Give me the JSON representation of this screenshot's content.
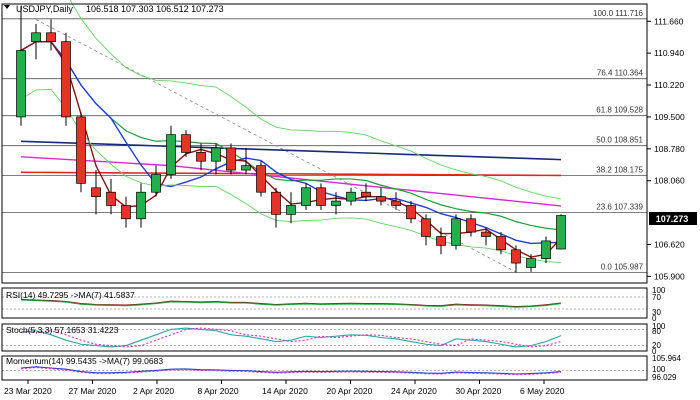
{
  "chart_data": {
    "type": "candlestick",
    "instrument": "USDJPY,Daily",
    "ohlc_header": "106.518 107.303 106.512 107.273",
    "x_tick_labels": [
      "23 Mar 2020",
      "27 Mar 2020",
      "2 Apr 2020",
      "8 Apr 2020",
      "14 Apr 2020",
      "20 Apr 2020",
      "24 Apr 2020",
      "30 Apr 2020",
      "6 May 2020"
    ],
    "y_tick_labels": [
      111.66,
      110.94,
      110.22,
      109.5,
      108.78,
      108.06,
      106.62,
      105.9
    ],
    "ylim": [
      105.75,
      112.05
    ],
    "last_price": "107.273",
    "fib_levels": [
      {
        "label": "100.0 111.716",
        "value": 111.716
      },
      {
        "label": "76.4 110.364",
        "value": 110.364
      },
      {
        "label": "61.8 109.528",
        "value": 109.528
      },
      {
        "label": "50.0 108.851",
        "value": 108.851
      },
      {
        "label": "38.2 108.175",
        "value": 108.175
      },
      {
        "label": "23.6 107.339",
        "value": 107.339
      },
      {
        "label": "0.0 105.987",
        "value": 105.987
      }
    ],
    "candles": [
      {
        "o": 109.5,
        "h": 112.0,
        "l": 109.3,
        "c": 111.0
      },
      {
        "o": 111.2,
        "h": 111.6,
        "l": 110.8,
        "c": 111.4
      },
      {
        "o": 111.4,
        "h": 111.7,
        "l": 111.0,
        "c": 111.2
      },
      {
        "o": 111.2,
        "h": 111.4,
        "l": 109.3,
        "c": 109.5
      },
      {
        "o": 109.5,
        "h": 109.6,
        "l": 107.8,
        "c": 108.0
      },
      {
        "o": 107.9,
        "h": 108.3,
        "l": 107.3,
        "c": 107.7
      },
      {
        "o": 107.8,
        "h": 108.1,
        "l": 107.3,
        "c": 107.5
      },
      {
        "o": 107.5,
        "h": 107.7,
        "l": 107.0,
        "c": 107.2
      },
      {
        "o": 107.2,
        "h": 108.0,
        "l": 107.0,
        "c": 107.8
      },
      {
        "o": 107.8,
        "h": 108.4,
        "l": 107.7,
        "c": 108.2
      },
      {
        "o": 108.2,
        "h": 109.3,
        "l": 108.1,
        "c": 109.1
      },
      {
        "o": 109.1,
        "h": 109.2,
        "l": 108.6,
        "c": 108.7
      },
      {
        "o": 108.7,
        "h": 108.9,
        "l": 108.3,
        "c": 108.5
      },
      {
        "o": 108.5,
        "h": 108.9,
        "l": 108.2,
        "c": 108.8
      },
      {
        "o": 108.8,
        "h": 108.9,
        "l": 108.2,
        "c": 108.3
      },
      {
        "o": 108.3,
        "h": 108.8,
        "l": 108.2,
        "c": 108.4
      },
      {
        "o": 108.4,
        "h": 108.5,
        "l": 107.7,
        "c": 107.8
      },
      {
        "o": 107.8,
        "h": 107.9,
        "l": 107.0,
        "c": 107.3
      },
      {
        "o": 107.3,
        "h": 107.8,
        "l": 107.1,
        "c": 107.5
      },
      {
        "o": 107.5,
        "h": 108.0,
        "l": 107.4,
        "c": 107.9
      },
      {
        "o": 107.9,
        "h": 108.0,
        "l": 107.4,
        "c": 107.5
      },
      {
        "o": 107.5,
        "h": 107.8,
        "l": 107.3,
        "c": 107.6
      },
      {
        "o": 107.6,
        "h": 107.9,
        "l": 107.5,
        "c": 107.8
      },
      {
        "o": 107.8,
        "h": 108.0,
        "l": 107.6,
        "c": 107.7
      },
      {
        "o": 107.7,
        "h": 107.9,
        "l": 107.5,
        "c": 107.6
      },
      {
        "o": 107.6,
        "h": 107.8,
        "l": 107.4,
        "c": 107.5
      },
      {
        "o": 107.5,
        "h": 107.6,
        "l": 107.1,
        "c": 107.2
      },
      {
        "o": 107.2,
        "h": 107.3,
        "l": 106.6,
        "c": 106.8
      },
      {
        "o": 106.8,
        "h": 107.0,
        "l": 106.4,
        "c": 106.6
      },
      {
        "o": 106.6,
        "h": 107.3,
        "l": 106.5,
        "c": 107.2
      },
      {
        "o": 107.2,
        "h": 107.3,
        "l": 106.8,
        "c": 106.9
      },
      {
        "o": 106.9,
        "h": 107.0,
        "l": 106.6,
        "c": 106.8
      },
      {
        "o": 106.8,
        "h": 106.9,
        "l": 106.4,
        "c": 106.5
      },
      {
        "o": 106.5,
        "h": 106.6,
        "l": 105.99,
        "c": 106.2
      },
      {
        "o": 106.1,
        "h": 106.4,
        "l": 106.0,
        "c": 106.3
      },
      {
        "o": 106.3,
        "h": 106.8,
        "l": 106.2,
        "c": 106.7
      },
      {
        "o": 106.518,
        "h": 107.303,
        "l": 106.512,
        "c": 107.273
      }
    ],
    "indicators": {
      "rsi": {
        "label": "RSI(14) 49.7295 ->MA(7) 41.5837",
        "levels": [
          "100",
          "70",
          "30",
          "0"
        ]
      },
      "stoch": {
        "label": "Stoch(5,3,3) 57.1653 31.4223",
        "levels": [
          "100",
          "80",
          "20",
          "0"
        ]
      },
      "momentum": {
        "label": "Momentum(14) 99.5435 ->MA(7) 99.0683",
        "levels": [
          "105.964",
          "100",
          "96.029"
        ]
      }
    },
    "colors": {
      "bull": "#23b04c",
      "bear": "#e5332a",
      "fib": "#555555",
      "ma_fast": "#8b1010",
      "ma_blue": "#1f3fd6",
      "ma_green": "#1e9e3a",
      "ma_magenta": "#d62ad0",
      "ma_navy": "#172a7c",
      "ma_red": "#e0281f",
      "band": "#66d266"
    }
  }
}
